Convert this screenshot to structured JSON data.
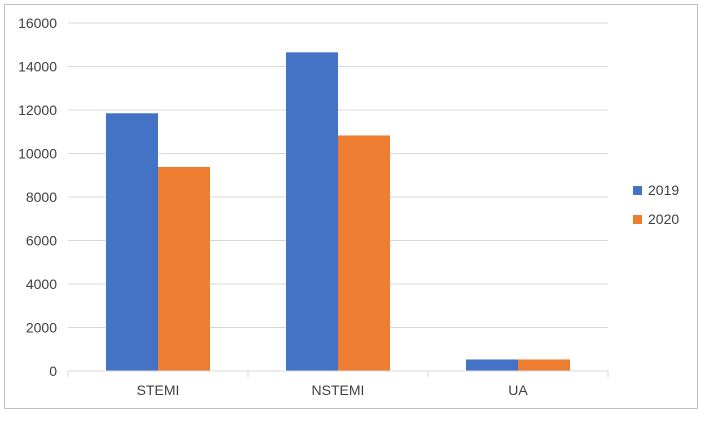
{
  "chart_data": {
    "type": "bar",
    "categories": [
      "STEMI",
      "NSTEMI",
      "UA"
    ],
    "series": [
      {
        "name": "2019",
        "values": [
          11850,
          14650,
          530
        ],
        "color": "#4472C4"
      },
      {
        "name": "2020",
        "values": [
          9380,
          10830,
          530
        ],
        "color": "#ED7D31"
      }
    ],
    "yticks": [
      "0",
      "2000",
      "4000",
      "6000",
      "8000",
      "10000",
      "12000",
      "14000",
      "16000"
    ],
    "ylim": [
      0,
      16000
    ],
    "grid": true,
    "legend_position": "right"
  }
}
